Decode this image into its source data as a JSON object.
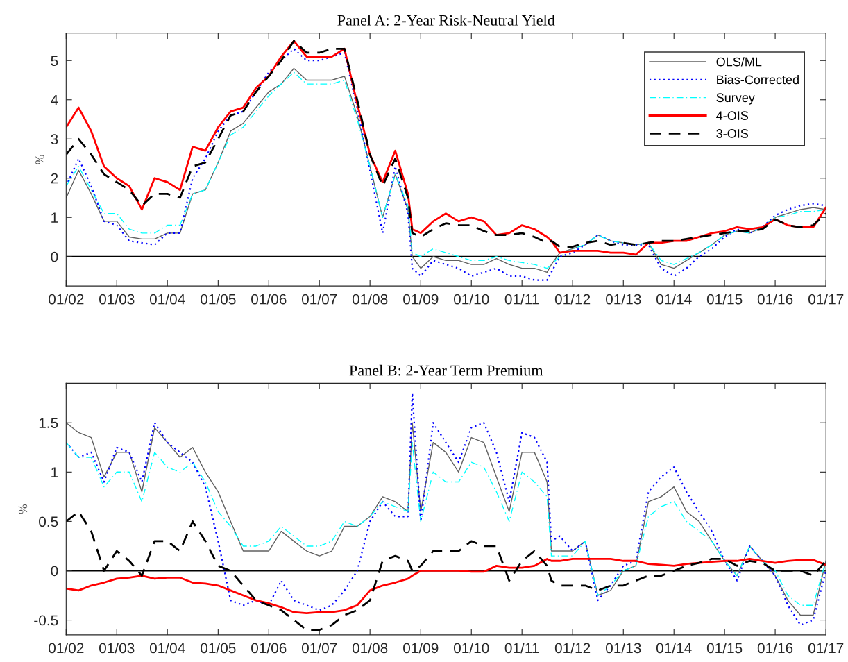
{
  "chart_data": [
    {
      "type": "line",
      "title": "Panel A: 2-Year Risk-Neutral Yield",
      "ylabel": "%",
      "x": [
        "2002-01",
        "2002-04",
        "2002-07",
        "2002-10",
        "2003-01",
        "2003-04",
        "2003-07",
        "2003-10",
        "2004-01",
        "2004-04",
        "2004-07",
        "2004-10",
        "2005-01",
        "2005-04",
        "2005-07",
        "2005-10",
        "2006-01",
        "2006-04",
        "2006-07",
        "2006-10",
        "2007-01",
        "2007-04",
        "2007-07",
        "2007-10",
        "2008-01",
        "2008-04",
        "2008-07",
        "2008-10",
        "2008-11",
        "2009-01",
        "2009-04",
        "2009-07",
        "2009-10",
        "2010-01",
        "2010-04",
        "2010-07",
        "2010-10",
        "2011-01",
        "2011-04",
        "2011-07",
        "2011-08",
        "2011-10",
        "2012-01",
        "2012-04",
        "2012-07",
        "2012-10",
        "2013-01",
        "2013-04",
        "2013-07",
        "2013-10",
        "2014-01",
        "2014-04",
        "2014-07",
        "2014-10",
        "2015-01",
        "2015-04",
        "2015-07",
        "2015-10",
        "2016-01",
        "2016-04",
        "2016-07",
        "2016-10",
        "2017-01"
      ],
      "series": [
        {
          "name": "OLS/ML",
          "color": "#606060",
          "line_style": "solid",
          "values": [
            1.5,
            2.2,
            1.6,
            0.9,
            0.9,
            0.5,
            0.45,
            0.45,
            0.6,
            0.6,
            1.6,
            1.7,
            2.4,
            3.2,
            3.4,
            3.8,
            4.2,
            4.4,
            4.8,
            4.5,
            4.5,
            4.5,
            4.6,
            3.6,
            2.3,
            1.0,
            2.1,
            1.2,
            0.0,
            -0.3,
            0.0,
            -0.1,
            -0.1,
            -0.2,
            -0.2,
            -0.05,
            -0.2,
            -0.3,
            -0.3,
            -0.4,
            -0.2,
            0.1,
            0.2,
            0.3,
            0.55,
            0.4,
            0.35,
            0.3,
            0.35,
            -0.2,
            -0.3,
            -0.1,
            0.1,
            0.3,
            0.55,
            0.65,
            0.6,
            0.75,
            1.0,
            1.1,
            1.2,
            1.25,
            1.2
          ]
        },
        {
          "name": "Bias-Corrected",
          "color": "#0000ff",
          "line_style": "dotted",
          "values": [
            1.8,
            2.5,
            1.8,
            0.9,
            0.8,
            0.4,
            0.35,
            0.3,
            0.6,
            0.6,
            2.0,
            2.5,
            3.2,
            3.6,
            3.7,
            4.2,
            4.7,
            5.0,
            5.3,
            5.0,
            5.0,
            5.1,
            5.2,
            3.8,
            2.2,
            0.6,
            2.3,
            1.1,
            -0.3,
            -0.5,
            -0.1,
            -0.2,
            -0.3,
            -0.5,
            -0.4,
            -0.3,
            -0.5,
            -0.5,
            -0.6,
            -0.6,
            -0.4,
            0.0,
            0.1,
            0.3,
            0.55,
            0.4,
            0.3,
            0.3,
            0.3,
            -0.3,
            -0.5,
            -0.3,
            0.0,
            0.2,
            0.5,
            0.7,
            0.6,
            0.75,
            1.05,
            1.2,
            1.3,
            1.35,
            1.3
          ]
        },
        {
          "name": "Survey",
          "color": "#00ffff",
          "line_style": "dashdot",
          "values": [
            1.8,
            2.3,
            1.7,
            1.1,
            1.1,
            0.7,
            0.6,
            0.6,
            0.8,
            0.8,
            1.6,
            1.7,
            2.4,
            3.1,
            3.3,
            3.7,
            4.1,
            4.4,
            4.7,
            4.4,
            4.4,
            4.4,
            4.5,
            3.5,
            2.3,
            1.0,
            2.1,
            1.3,
            0.1,
            0.0,
            0.2,
            0.1,
            0.0,
            -0.1,
            -0.1,
            0.0,
            -0.1,
            -0.15,
            -0.2,
            -0.3,
            -0.2,
            0.0,
            0.2,
            0.3,
            0.55,
            0.4,
            0.35,
            0.3,
            0.35,
            -0.1,
            -0.2,
            -0.05,
            0.1,
            0.3,
            0.55,
            0.65,
            0.6,
            0.75,
            1.0,
            1.05,
            1.15,
            1.15,
            1.2
          ]
        },
        {
          "name": "4-OIS",
          "color": "#ff0000",
          "line_style": "solid",
          "values": [
            3.3,
            3.8,
            3.2,
            2.3,
            2.0,
            1.8,
            1.2,
            2.0,
            1.9,
            1.7,
            2.8,
            2.7,
            3.3,
            3.7,
            3.8,
            4.3,
            4.6,
            5.1,
            5.5,
            5.1,
            5.1,
            5.1,
            5.3,
            3.9,
            2.6,
            1.9,
            2.7,
            1.6,
            0.7,
            0.6,
            0.9,
            1.1,
            0.9,
            1.0,
            0.9,
            0.55,
            0.6,
            0.8,
            0.7,
            0.5,
            0.4,
            0.1,
            0.15,
            0.15,
            0.15,
            0.1,
            0.1,
            0.05,
            0.35,
            0.35,
            0.4,
            0.4,
            0.5,
            0.6,
            0.65,
            0.75,
            0.7,
            0.75,
            0.95,
            0.8,
            0.75,
            0.75,
            1.25
          ]
        },
        {
          "name": "3-OIS",
          "color": "#000000",
          "line_style": "dashed",
          "values": [
            2.6,
            3.0,
            2.6,
            2.1,
            1.9,
            1.7,
            1.3,
            1.6,
            1.6,
            1.5,
            2.3,
            2.4,
            3.0,
            3.6,
            3.7,
            4.2,
            4.6,
            5.0,
            5.5,
            5.2,
            5.2,
            5.3,
            5.3,
            4.0,
            2.6,
            1.8,
            2.5,
            1.5,
            0.6,
            0.5,
            0.7,
            0.85,
            0.8,
            0.8,
            0.65,
            0.55,
            0.55,
            0.6,
            0.5,
            0.35,
            0.4,
            0.25,
            0.25,
            0.35,
            0.4,
            0.3,
            0.35,
            0.3,
            0.35,
            0.4,
            0.4,
            0.45,
            0.5,
            0.55,
            0.6,
            0.65,
            0.65,
            0.7,
            0.95,
            0.8,
            0.75,
            0.8,
            1.1
          ]
        }
      ],
      "xlim": [
        "2002-01",
        "2017-01"
      ],
      "xticks": [
        {
          "value": "2002-01",
          "label": "01/02"
        },
        {
          "value": "2003-01",
          "label": "01/03"
        },
        {
          "value": "2004-01",
          "label": "01/04"
        },
        {
          "value": "2005-01",
          "label": "01/05"
        },
        {
          "value": "2006-01",
          "label": "01/06"
        },
        {
          "value": "2007-01",
          "label": "01/07"
        },
        {
          "value": "2008-01",
          "label": "01/08"
        },
        {
          "value": "2009-01",
          "label": "01/09"
        },
        {
          "value": "2010-01",
          "label": "01/10"
        },
        {
          "value": "2011-01",
          "label": "01/11"
        },
        {
          "value": "2012-01",
          "label": "01/12"
        },
        {
          "value": "2013-01",
          "label": "01/13"
        },
        {
          "value": "2014-01",
          "label": "01/14"
        },
        {
          "value": "2015-01",
          "label": "01/15"
        },
        {
          "value": "2016-01",
          "label": "01/16"
        },
        {
          "value": "2017-01",
          "label": "01/17"
        }
      ],
      "ylim": [
        -0.75,
        5.7
      ],
      "yticks": [
        0,
        1,
        2,
        3,
        4,
        5
      ],
      "ref_lines": [
        {
          "axis": "y",
          "value": 0,
          "color": "#000000"
        }
      ],
      "legend": "top right",
      "grid": false
    },
    {
      "type": "line",
      "title": "Panel B: 2-Year Term Premium",
      "ylabel": "%",
      "x": [
        "2002-01",
        "2002-04",
        "2002-07",
        "2002-10",
        "2003-01",
        "2003-04",
        "2003-07",
        "2003-10",
        "2004-01",
        "2004-04",
        "2004-07",
        "2004-10",
        "2005-01",
        "2005-04",
        "2005-07",
        "2005-10",
        "2006-01",
        "2006-04",
        "2006-07",
        "2006-10",
        "2007-01",
        "2007-04",
        "2007-07",
        "2007-10",
        "2008-01",
        "2008-04",
        "2008-07",
        "2008-10",
        "2008-11",
        "2009-01",
        "2009-04",
        "2009-07",
        "2009-10",
        "2010-01",
        "2010-04",
        "2010-07",
        "2010-10",
        "2011-01",
        "2011-04",
        "2011-07",
        "2011-08",
        "2011-10",
        "2012-01",
        "2012-04",
        "2012-07",
        "2012-10",
        "2013-01",
        "2013-04",
        "2013-07",
        "2013-10",
        "2014-01",
        "2014-04",
        "2014-07",
        "2014-10",
        "2015-01",
        "2015-04",
        "2015-07",
        "2015-10",
        "2016-01",
        "2016-04",
        "2016-07",
        "2016-10",
        "2017-01"
      ],
      "series": [
        {
          "color": "#606060",
          "line_style": "solid",
          "values": [
            1.5,
            1.4,
            1.35,
            0.95,
            1.2,
            1.2,
            0.8,
            1.45,
            1.3,
            1.15,
            1.25,
            1.0,
            0.8,
            0.5,
            0.2,
            0.2,
            0.2,
            0.4,
            0.3,
            0.2,
            0.15,
            0.2,
            0.45,
            0.45,
            0.55,
            0.75,
            0.7,
            0.6,
            1.5,
            0.6,
            1.3,
            1.2,
            1.0,
            1.35,
            1.3,
            0.95,
            0.6,
            1.2,
            1.2,
            0.9,
            0.2,
            0.2,
            0.2,
            0.3,
            -0.25,
            -0.2,
            0.0,
            0.05,
            0.7,
            0.75,
            0.85,
            0.6,
            0.5,
            0.3,
            0.1,
            -0.05,
            0.25,
            0.1,
            -0.05,
            -0.3,
            -0.45,
            -0.45,
            0.1
          ]
        },
        {
          "color": "#0000ff",
          "line_style": "dotted",
          "values": [
            1.3,
            1.15,
            1.2,
            0.9,
            1.25,
            1.2,
            0.9,
            1.5,
            1.3,
            1.2,
            1.1,
            0.85,
            0.3,
            -0.3,
            -0.35,
            -0.3,
            -0.35,
            -0.1,
            -0.3,
            -0.35,
            -0.4,
            -0.35,
            -0.2,
            0.0,
            0.5,
            0.7,
            0.55,
            0.55,
            1.8,
            0.5,
            1.5,
            1.3,
            1.1,
            1.45,
            1.5,
            1.2,
            0.7,
            1.4,
            1.35,
            1.1,
            0.3,
            0.35,
            0.2,
            0.3,
            -0.3,
            -0.15,
            0.05,
            0.1,
            0.8,
            0.95,
            1.05,
            0.8,
            0.6,
            0.4,
            0.1,
            -0.1,
            0.25,
            0.1,
            -0.05,
            -0.35,
            -0.55,
            -0.5,
            0.0
          ]
        },
        {
          "color": "#00ffff",
          "line_style": "dashdot",
          "values": [
            1.3,
            1.15,
            1.15,
            0.85,
            1.0,
            1.0,
            0.7,
            1.2,
            1.05,
            1.0,
            1.1,
            0.9,
            0.6,
            0.45,
            0.25,
            0.25,
            0.3,
            0.45,
            0.35,
            0.25,
            0.25,
            0.3,
            0.5,
            0.45,
            0.55,
            0.7,
            0.65,
            0.6,
            1.3,
            0.5,
            1.0,
            0.9,
            0.9,
            1.1,
            1.05,
            0.8,
            0.5,
            1.0,
            0.9,
            0.75,
            0.15,
            0.15,
            0.15,
            0.3,
            -0.25,
            -0.15,
            0.0,
            0.05,
            0.55,
            0.65,
            0.7,
            0.5,
            0.4,
            0.3,
            0.1,
            -0.05,
            0.25,
            0.1,
            0.0,
            -0.25,
            -0.35,
            -0.35,
            0.1
          ]
        },
        {
          "color": "#ff0000",
          "line_style": "solid",
          "values": [
            -0.18,
            -0.2,
            -0.15,
            -0.12,
            -0.08,
            -0.07,
            -0.05,
            -0.08,
            -0.07,
            -0.07,
            -0.12,
            -0.13,
            -0.15,
            -0.2,
            -0.25,
            -0.3,
            -0.33,
            -0.37,
            -0.42,
            -0.43,
            -0.42,
            -0.42,
            -0.4,
            -0.35,
            -0.2,
            -0.15,
            -0.12,
            -0.08,
            -0.05,
            0.0,
            0.0,
            0.0,
            0.0,
            -0.01,
            -0.01,
            0.05,
            0.03,
            0.03,
            0.05,
            0.12,
            0.1,
            0.1,
            0.12,
            0.12,
            0.12,
            0.12,
            0.1,
            0.1,
            0.07,
            0.06,
            0.05,
            0.07,
            0.08,
            0.09,
            0.1,
            0.1,
            0.12,
            0.1,
            0.08,
            0.1,
            0.11,
            0.11,
            0.06
          ]
        },
        {
          "color": "#000000",
          "line_style": "dashed",
          "values": [
            0.5,
            0.6,
            0.4,
            0.0,
            0.2,
            0.1,
            -0.05,
            0.3,
            0.3,
            0.2,
            0.5,
            0.3,
            0.05,
            0.0,
            -0.15,
            -0.3,
            -0.35,
            -0.4,
            -0.5,
            -0.6,
            -0.6,
            -0.55,
            -0.45,
            -0.4,
            -0.3,
            0.1,
            0.15,
            0.1,
            0.0,
            0.05,
            0.2,
            0.2,
            0.2,
            0.3,
            0.25,
            0.25,
            -0.1,
            0.1,
            0.2,
            0.05,
            -0.1,
            -0.15,
            -0.15,
            -0.15,
            -0.2,
            -0.15,
            -0.15,
            -0.1,
            -0.05,
            -0.05,
            0.0,
            0.05,
            0.08,
            0.12,
            0.12,
            0.05,
            0.1,
            0.08,
            0.0,
            0.0,
            0.0,
            -0.05,
            0.1
          ]
        }
      ],
      "xlim": [
        "2002-01",
        "2017-01"
      ],
      "xticks": [
        {
          "value": "2002-01",
          "label": "01/02"
        },
        {
          "value": "2003-01",
          "label": "01/03"
        },
        {
          "value": "2004-01",
          "label": "01/04"
        },
        {
          "value": "2005-01",
          "label": "01/05"
        },
        {
          "value": "2006-01",
          "label": "01/06"
        },
        {
          "value": "2007-01",
          "label": "01/07"
        },
        {
          "value": "2008-01",
          "label": "01/08"
        },
        {
          "value": "2009-01",
          "label": "01/09"
        },
        {
          "value": "2010-01",
          "label": "01/10"
        },
        {
          "value": "2011-01",
          "label": "01/11"
        },
        {
          "value": "2012-01",
          "label": "01/12"
        },
        {
          "value": "2013-01",
          "label": "01/13"
        },
        {
          "value": "2014-01",
          "label": "01/14"
        },
        {
          "value": "2015-01",
          "label": "01/15"
        },
        {
          "value": "2016-01",
          "label": "01/16"
        },
        {
          "value": "2017-01",
          "label": "01/17"
        }
      ],
      "ylim": [
        -0.65,
        1.9
      ],
      "yticks": [
        -0.5,
        0,
        0.5,
        1,
        1.5
      ],
      "ref_lines": [
        {
          "axis": "y",
          "value": 0,
          "color": "#000000"
        }
      ],
      "grid": false
    }
  ]
}
